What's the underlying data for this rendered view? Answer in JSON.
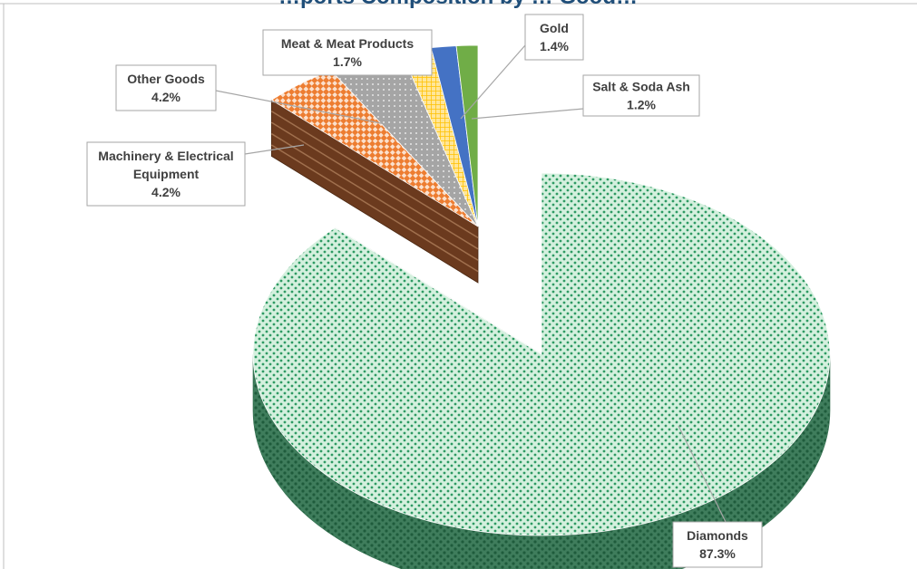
{
  "chart_data": {
    "type": "pie",
    "title": "…ports Composition by … Good…",
    "exploded": "Diamonds",
    "slices": [
      {
        "label": "Diamonds",
        "value": 87.3,
        "display": "87.3%",
        "color": "#2e9a63"
      },
      {
        "label": "Machinery & Electrical Equipment",
        "value": 4.2,
        "display": "4.2%",
        "color": "#ed7d31"
      },
      {
        "label": "Other Goods",
        "value": 4.2,
        "display": "4.2%",
        "color": "#a5a5a5"
      },
      {
        "label": "Meat & Meat Products",
        "value": 1.7,
        "display": "1.7%",
        "color": "#ffc000"
      },
      {
        "label": "Gold",
        "value": 1.4,
        "display": "1.4%",
        "color": "#4472c4"
      },
      {
        "label": "Salt & Soda Ash",
        "value": 1.2,
        "display": "1.2%",
        "color": "#70ad47"
      }
    ],
    "side_color": "#6b3a1e"
  }
}
